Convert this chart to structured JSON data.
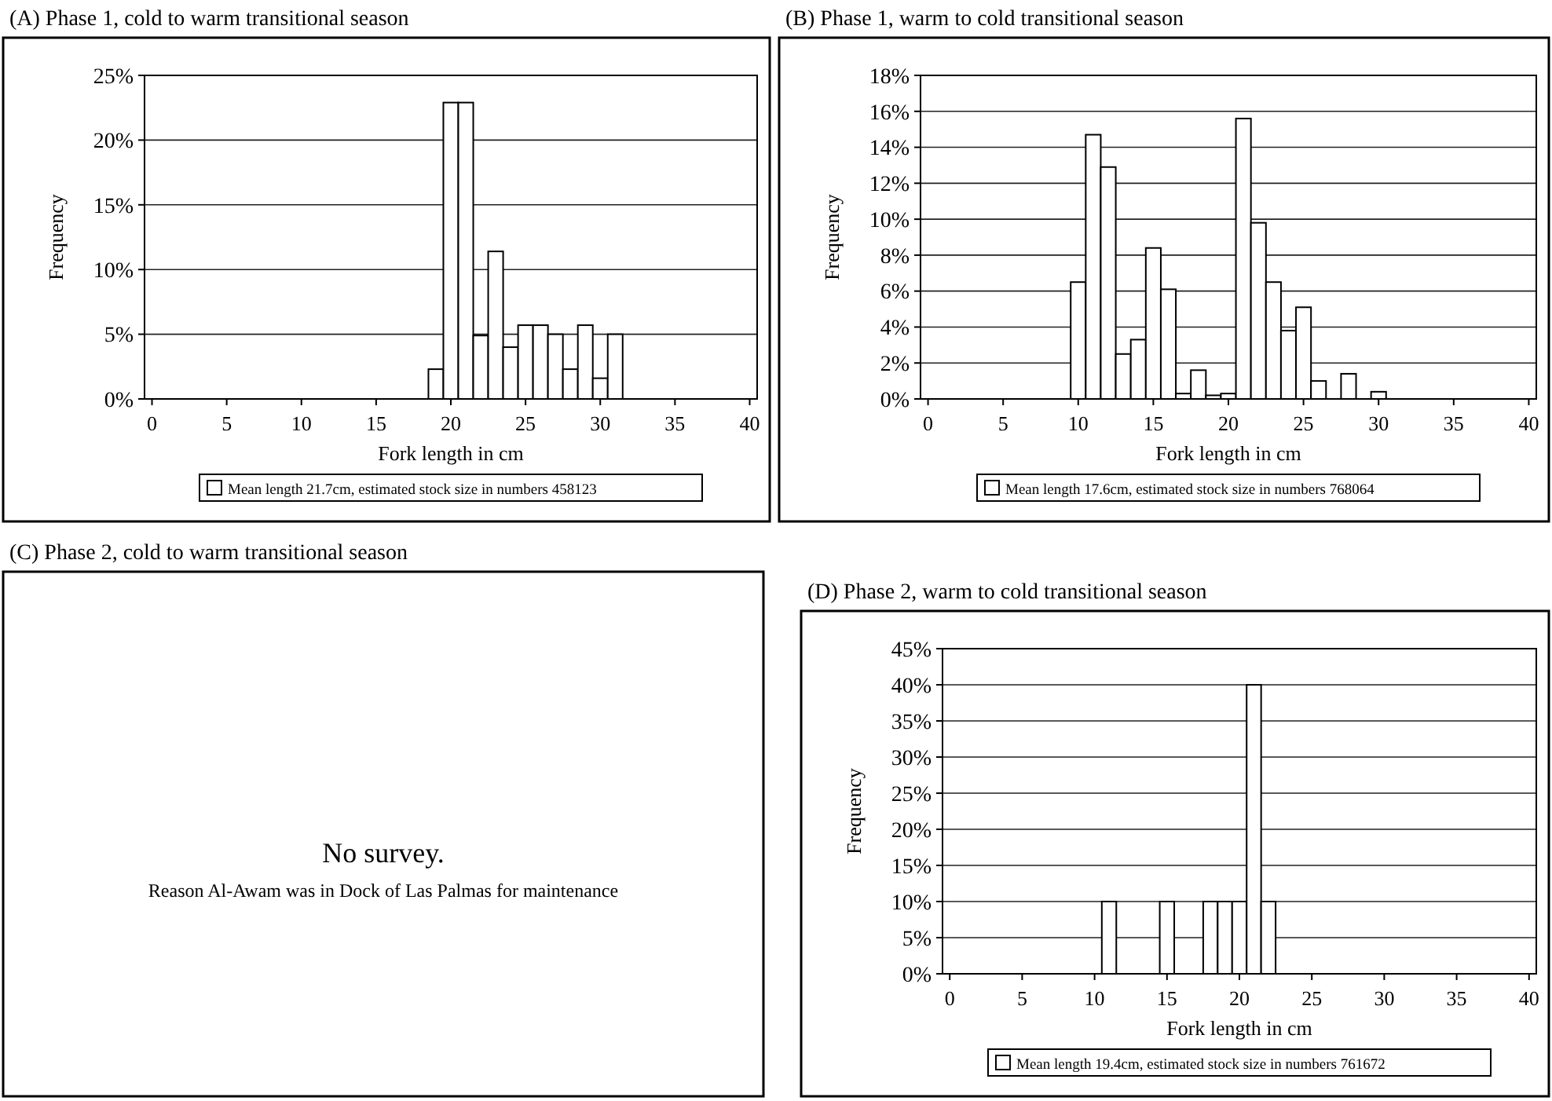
{
  "chart_data": [
    {
      "type": "bar",
      "title": "(A) Phase 1, cold to warm transitional season",
      "xlabel": "Fork length in cm",
      "ylabel": "Frequency",
      "x": [
        0,
        1,
        2,
        3,
        4,
        5,
        6,
        7,
        8,
        9,
        10,
        11,
        12,
        13,
        14,
        15,
        16,
        17,
        18,
        19,
        20,
        21,
        22,
        23,
        24,
        25,
        26,
        27,
        28,
        29,
        30,
        31,
        32,
        33,
        34,
        35,
        36,
        37,
        38,
        39,
        40
      ],
      "series": [
        {
          "name": "Mean length 21.7cm, estimated stock size in numbers 458123",
          "color": "#ffffff",
          "values": [
            0,
            0,
            0,
            0,
            0,
            0,
            0,
            0,
            0,
            0,
            0,
            0,
            0,
            0,
            0,
            0,
            0,
            0,
            0,
            2.3,
            22.9,
            22.9,
            4.9,
            11.4,
            4.0,
            5.7,
            5.7,
            5.0,
            2.3,
            5.7,
            1.6,
            5.0,
            0,
            0,
            0,
            0,
            0,
            0,
            0,
            0,
            0
          ]
        }
      ],
      "xlim": [
        -0.5,
        40.5
      ],
      "xticks": [
        0,
        5,
        10,
        15,
        20,
        25,
        30,
        35,
        40
      ],
      "ylim": [
        0,
        25
      ],
      "yticks": [
        {
          "value": 0,
          "label": "0%"
        },
        {
          "value": 5,
          "label": "5%"
        },
        {
          "value": 10,
          "label": "10%"
        },
        {
          "value": 15,
          "label": "15%"
        },
        {
          "value": 20,
          "label": "20%"
        },
        {
          "value": 25,
          "label": "25%"
        }
      ],
      "grid": "y",
      "legend": "bottom"
    },
    {
      "type": "bar",
      "title": "(B) Phase 1, warm to cold transitional season",
      "xlabel": "Fork length in cm",
      "ylabel": "Frequency",
      "x": [
        0,
        1,
        2,
        3,
        4,
        5,
        6,
        7,
        8,
        9,
        10,
        11,
        12,
        13,
        14,
        15,
        16,
        17,
        18,
        19,
        20,
        21,
        22,
        23,
        24,
        25,
        26,
        27,
        28,
        29,
        30,
        31,
        32,
        33,
        34,
        35,
        36,
        37,
        38,
        39,
        40
      ],
      "series": [
        {
          "name": "Mean length 17.6cm, estimated stock size in numbers 768064",
          "color": "#ffffff",
          "values": [
            0,
            0,
            0,
            0,
            0,
            0,
            0,
            0,
            0,
            0,
            6.5,
            14.7,
            12.9,
            2.5,
            3.3,
            8.4,
            6.1,
            0.3,
            1.6,
            0.2,
            0.3,
            15.6,
            9.8,
            6.5,
            3.8,
            5.1,
            1.0,
            0,
            1.4,
            0,
            0.4,
            0,
            0,
            0,
            0,
            0,
            0,
            0,
            0,
            0,
            0
          ]
        }
      ],
      "xlim": [
        -0.5,
        40.5
      ],
      "xticks": [
        0,
        5,
        10,
        15,
        20,
        25,
        30,
        35,
        40
      ],
      "ylim": [
        0,
        18
      ],
      "yticks": [
        {
          "value": 0,
          "label": "0%"
        },
        {
          "value": 2,
          "label": "2%"
        },
        {
          "value": 4,
          "label": "4%"
        },
        {
          "value": 6,
          "label": "6%"
        },
        {
          "value": 8,
          "label": "8%"
        },
        {
          "value": 10,
          "label": "10%"
        },
        {
          "value": 12,
          "label": "12%"
        },
        {
          "value": 14,
          "label": "14%"
        },
        {
          "value": 16,
          "label": "16%"
        },
        {
          "value": 18,
          "label": "18%"
        }
      ],
      "grid": "y",
      "legend": "bottom"
    },
    {
      "type": "other",
      "title": "(C) Phase 2, cold to warm transitional season",
      "annotations": [
        "No survey.",
        "Reason Al-Awam was in Dock of Las Palmas for maintenance"
      ]
    },
    {
      "type": "bar",
      "title": "(D) Phase 2, warm to cold transitional season",
      "xlabel": "Fork length in cm",
      "ylabel": "Frequency",
      "x": [
        0,
        1,
        2,
        3,
        4,
        5,
        6,
        7,
        8,
        9,
        10,
        11,
        12,
        13,
        14,
        15,
        16,
        17,
        18,
        19,
        20,
        21,
        22,
        23,
        24,
        25,
        26,
        27,
        28,
        29,
        30,
        31,
        32,
        33,
        34,
        35,
        36,
        37,
        38,
        39,
        40
      ],
      "series": [
        {
          "name": "Mean length 19.4cm, estimated stock size in numbers 761672",
          "color": "#ffffff",
          "values": [
            0,
            0,
            0,
            0,
            0,
            0,
            0,
            0,
            0,
            0,
            0,
            10,
            0,
            0,
            0,
            10,
            0,
            0,
            10,
            10,
            10,
            40,
            10,
            0,
            0,
            0,
            0,
            0,
            0,
            0,
            0,
            0,
            0,
            0,
            0,
            0,
            0,
            0,
            0,
            0,
            0
          ]
        }
      ],
      "xlim": [
        -0.5,
        40.5
      ],
      "xticks": [
        0,
        5,
        10,
        15,
        20,
        25,
        30,
        35,
        40
      ],
      "ylim": [
        0,
        45
      ],
      "yticks": [
        {
          "value": 0,
          "label": "0%"
        },
        {
          "value": 5,
          "label": "5%"
        },
        {
          "value": 10,
          "label": "10%"
        },
        {
          "value": 15,
          "label": "15%"
        },
        {
          "value": 20,
          "label": "20%"
        },
        {
          "value": 25,
          "label": "25%"
        },
        {
          "value": 30,
          "label": "30%"
        },
        {
          "value": 35,
          "label": "35%"
        },
        {
          "value": 40,
          "label": "40%"
        },
        {
          "value": 45,
          "label": "45%"
        }
      ],
      "grid": "y",
      "legend": "bottom"
    }
  ]
}
